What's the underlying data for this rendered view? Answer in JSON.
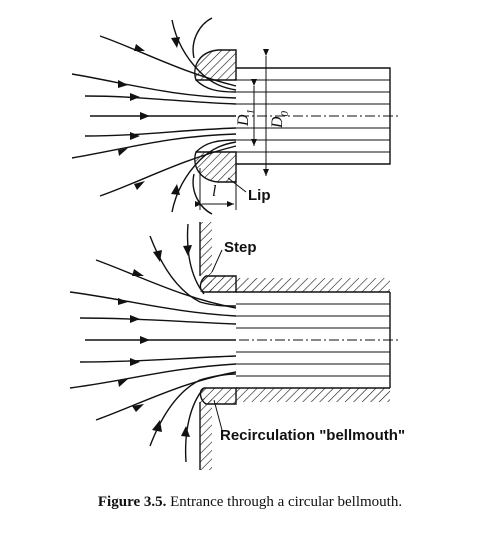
{
  "labels": {
    "d_inner": "D",
    "d_inner_sub": "1",
    "d_outer": "D",
    "d_outer_sub": "0",
    "length": "l",
    "lip": "Lip",
    "step": "Step",
    "recirculation": "Recirculation \"bellmouth\""
  },
  "caption": {
    "label": "Figure 3.5.",
    "text": " Entrance through a circular bellmouth."
  }
}
